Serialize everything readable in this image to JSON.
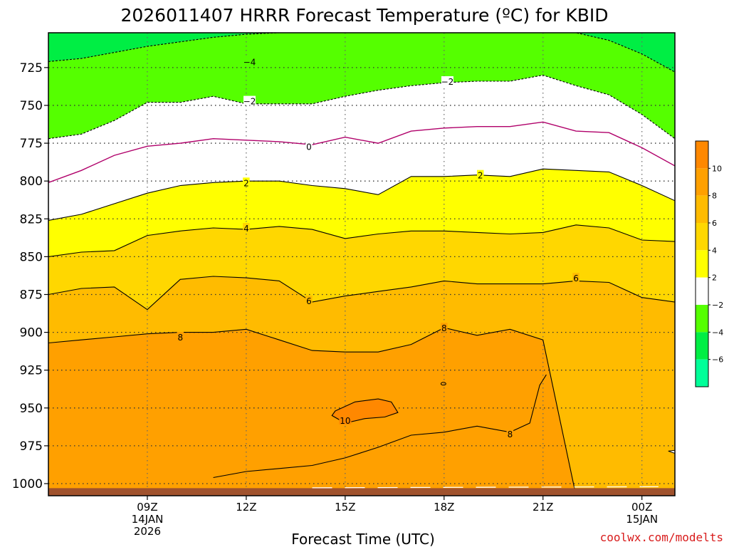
{
  "chart_data": {
    "type": "contour",
    "title": "2026011407 HRRR Forecast Temperature (ºC) for KBID",
    "xlabel": "Forecast Time (UTC)",
    "x_ticks": [
      {
        "hour": 9,
        "lines": [
          "09Z",
          "14JAN",
          "2026"
        ]
      },
      {
        "hour": 12,
        "lines": [
          "12Z"
        ]
      },
      {
        "hour": 15,
        "lines": [
          "15Z"
        ]
      },
      {
        "hour": 18,
        "lines": [
          "18Z"
        ]
      },
      {
        "hour": 21,
        "lines": [
          "21Z"
        ]
      },
      {
        "hour": 24,
        "lines": [
          "00Z",
          "15JAN"
        ]
      }
    ],
    "xlim": [
      6,
      25
    ],
    "y_ticks": [
      725,
      750,
      775,
      800,
      825,
      850,
      875,
      900,
      925,
      950,
      975,
      1000
    ],
    "ylim": [
      702,
      1008
    ],
    "y_inverted": true,
    "ground_level_hpa": 1003,
    "grid": true,
    "colorbar": {
      "position": "right",
      "labels": [
        "10",
        "8",
        "6",
        "4",
        "2",
        "−2",
        "−4",
        "−6"
      ],
      "bands": [
        {
          "from": 10,
          "to": 12,
          "color": "#ff8800"
        },
        {
          "from": 8,
          "to": 10,
          "color": "#ffa000"
        },
        {
          "from": 6,
          "to": 8,
          "color": "#ffbb00"
        },
        {
          "from": 4,
          "to": 6,
          "color": "#ffd700"
        },
        {
          "from": 2,
          "to": 4,
          "color": "#ffff00"
        },
        {
          "from": -2,
          "to": 2,
          "color": "#ffffff"
        },
        {
          "from": -4,
          "to": -2,
          "color": "#55ff00"
        },
        {
          "from": -6,
          "to": -4,
          "color": "#00ee44"
        },
        {
          "from": -8,
          "to": -6,
          "color": "#00ff99"
        }
      ]
    },
    "filled_regions": [
      {
        "min_temp": 8,
        "color": "#ffa000"
      },
      {
        "min_temp": 10,
        "color": "#ff8800"
      }
    ],
    "contour_x": [
      6,
      7,
      8,
      9,
      10,
      11,
      12,
      13,
      14,
      15,
      16,
      17,
      18,
      19,
      20,
      21,
      22,
      23,
      24,
      25
    ],
    "isotherms": [
      {
        "temp": -4,
        "color": "#000000",
        "dashed": true,
        "p": [
          721,
          719,
          715,
          711,
          708,
          705,
          703,
          702,
          702,
          702,
          702,
          702,
          702,
          702,
          702,
          702,
          702,
          707,
          716,
          728
        ]
      },
      {
        "temp": -2,
        "color": "#000000",
        "dashed": true,
        "p": [
          772,
          769,
          760,
          748,
          748,
          744,
          749,
          749,
          749,
          744,
          740,
          737,
          735,
          734,
          734,
          730,
          737,
          743,
          756,
          772
        ]
      },
      {
        "temp": 0,
        "color": "#b0006a",
        "dashed": false,
        "p": [
          801,
          793,
          783,
          777,
          775,
          772,
          773,
          774,
          776,
          771,
          775,
          767,
          765,
          764,
          764,
          761,
          767,
          768,
          778,
          790
        ]
      },
      {
        "temp": 2,
        "color": "#000000",
        "dashed": false,
        "p": [
          826,
          822,
          815,
          808,
          803,
          801,
          800,
          800,
          803,
          805,
          809,
          797,
          797,
          796,
          797,
          792,
          793,
          794,
          803,
          813
        ]
      },
      {
        "temp": 4,
        "color": "#000000",
        "dashed": false,
        "p": [
          850,
          847,
          846,
          836,
          833,
          831,
          832,
          830,
          832,
          838,
          835,
          833,
          833,
          834,
          835,
          834,
          829,
          831,
          839,
          840
        ]
      },
      {
        "temp": 6,
        "color": "#000000",
        "dashed": false,
        "p": [
          875,
          871,
          870,
          885,
          865,
          863,
          864,
          866,
          880,
          876,
          873,
          870,
          866,
          868,
          868,
          868,
          866,
          867,
          877,
          880
        ]
      },
      {
        "temp": 8,
        "color": "#000000",
        "dashed": false,
        "p": [
          907,
          905,
          903,
          901,
          900,
          900,
          898,
          905,
          912,
          913,
          913,
          908,
          897,
          902,
          898,
          905,
          1008,
          1008,
          1008,
          1008
        ]
      }
    ],
    "annotations": [
      {
        "text": "−4",
        "hour": 12.1,
        "hpa": 721
      },
      {
        "text": "−2",
        "hour": 12.1,
        "hpa": 747
      },
      {
        "text": "−2",
        "hour": 18.1,
        "hpa": 734
      },
      {
        "text": "0",
        "hour": 13.9,
        "hpa": 777
      },
      {
        "text": "2",
        "hour": 12.0,
        "hpa": 801
      },
      {
        "text": "2",
        "hour": 19.1,
        "hpa": 796
      },
      {
        "text": "4",
        "hour": 12.0,
        "hpa": 831
      },
      {
        "text": "6",
        "hour": 13.9,
        "hpa": 879
      },
      {
        "text": "6",
        "hour": 22.0,
        "hpa": 864
      },
      {
        "text": "8",
        "hour": 10.0,
        "hpa": 903
      },
      {
        "text": "8",
        "hour": 18.0,
        "hpa": 897
      },
      {
        "text": "8",
        "hour": 20.0,
        "hpa": 967
      },
      {
        "text": "10",
        "hour": 15.0,
        "hpa": 958
      }
    ]
  },
  "credit": "coolwx.com/modelts"
}
